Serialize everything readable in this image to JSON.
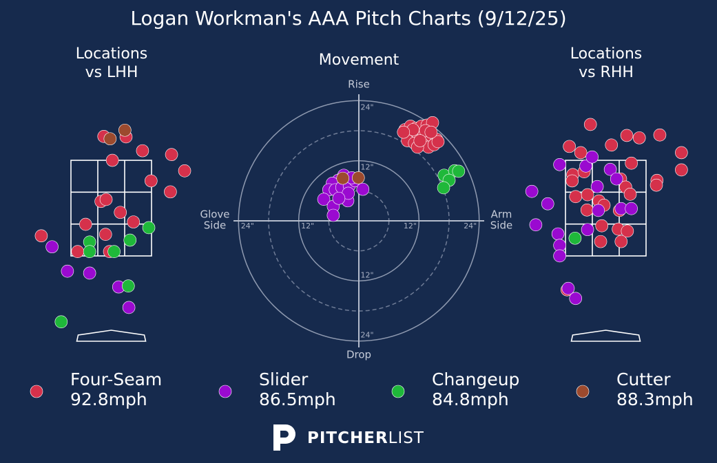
{
  "title": "Logan Workman's AAA Pitch Charts (9/12/25)",
  "pitches": [
    {
      "name": "Four-Seam",
      "speed": "92.8mph",
      "color": "#d5314b"
    },
    {
      "name": "Slider",
      "speed": "86.5mph",
      "color": "#9a0ad0"
    },
    {
      "name": "Changeup",
      "speed": "84.8mph",
      "color": "#1fb83a"
    },
    {
      "name": "Cutter",
      "speed": "88.3mph",
      "color": "#9c4a2e"
    }
  ],
  "chart_data": [
    {
      "type": "scatter",
      "grid": "strike-zone",
      "title": [
        "Locations",
        "vs LHH"
      ],
      "xlim": [
        -1.35,
        1.35
      ],
      "ylim": [
        -0.3,
        4.4
      ],
      "series": [
        {
          "x": [
            -0.13,
            0.26,
            0.55,
            1.06,
            0.02,
            1.29,
            0.7,
            1.04,
            -0.18,
            -0.09,
            0.16,
            0.39,
            -0.45,
            -0.1,
            -1.23,
            -0.59,
            -0.03
          ],
          "y": [
            4.0,
            3.99,
            3.7,
            3.62,
            3.5,
            3.28,
            3.07,
            2.84,
            2.64,
            2.68,
            2.41,
            2.21,
            2.16,
            1.95,
            1.92,
            1.59,
            1.59
          ]
        },
        {
          "x": [
            -1.04,
            -0.77,
            -0.38,
            0.13,
            0.31
          ],
          "y": [
            1.69,
            1.18,
            1.14,
            0.85,
            0.42
          ]
        },
        {
          "x": [
            -0.38,
            -0.38,
            0.05,
            0.33,
            0.66,
            0.3,
            -0.88
          ],
          "y": [
            1.79,
            1.59,
            1.59,
            1.83,
            2.09,
            0.87,
            0.12
          ]
        },
        {
          "x": [
            0.24,
            -0.02
          ],
          "y": [
            4.13,
            3.95
          ]
        }
      ]
    },
    {
      "type": "scatter",
      "grid": "rings",
      "title": [
        "Movement"
      ],
      "xlim": [
        -25,
        25
      ],
      "ylim": [
        -25,
        25
      ],
      "rings": [
        {
          "value": 12,
          "label": "12\""
        },
        {
          "value": 24,
          "label": "24\""
        }
      ],
      "dashed_rings": [
        6,
        18
      ],
      "axis_labels": {
        "top": "Rise",
        "bottom": "Drop",
        "left": [
          "Glove",
          "Side"
        ],
        "right": [
          "Arm",
          "Side"
        ]
      },
      "series": [
        {
          "x": [
            9.2,
            10.3,
            11.4,
            12.5,
            13.6,
            14.7,
            10.6,
            11.9,
            13.0,
            14.1,
            15.5,
            9.7,
            11.1,
            12.8,
            13.9,
            15.0,
            15.8,
            11.7,
            10.8,
            13.3,
            14.4,
            8.9,
            12.2
          ],
          "y": [
            18.2,
            18.9,
            18.5,
            18.9,
            19.1,
            19.6,
            17.1,
            16.9,
            17.1,
            16.6,
            16.3,
            16.0,
            15.5,
            15.2,
            14.7,
            15.2,
            15.8,
            14.7,
            18.2,
            18.0,
            17.7,
            17.7,
            16.0
          ]
        },
        {
          "x": [
            -3.0,
            -4.1,
            -5.3,
            -6.0,
            -4.7,
            -3.4,
            -1.9,
            -0.7,
            0.8,
            -7.0,
            -5.1,
            -5.1,
            -2.2,
            -2.1,
            -4.0,
            -1.4
          ],
          "y": [
            9.1,
            8.1,
            7.5,
            6.2,
            6.2,
            6.7,
            7.0,
            8.0,
            6.3,
            4.3,
            2.9,
            1.1,
            4.0,
            5.5,
            4.5,
            8.6
          ]
        },
        {
          "x": [
            17.0,
            19.1,
            19.9,
            18.0,
            16.9
          ],
          "y": [
            9.1,
            10.0,
            9.9,
            8.1,
            6.6
          ]
        },
        {
          "x": [
            -3.2,
            -0.1
          ],
          "y": [
            8.5,
            8.6
          ]
        }
      ]
    },
    {
      "type": "scatter",
      "grid": "strike-zone",
      "title": [
        "Locations",
        "vs RHH"
      ],
      "xlim": [
        -1.35,
        1.35
      ],
      "ylim": [
        -0.3,
        4.4
      ],
      "series": [
        {
          "x": [
            -0.27,
            -0.64,
            -0.44,
            0.1,
            0.37,
            0.59,
            0.95,
            1.33,
            1.33,
            0.45,
            -0.58,
            -0.38,
            -0.59,
            0.9,
            0.89,
            0.26,
            0.35,
            0.43,
            -0.53,
            -0.32,
            -0.12,
            -0.03,
            -0.33,
            0.24,
            -0.07,
            0.22,
            0.38,
            -0.09,
            0.27,
            -0.68
          ],
          "y": [
            4.25,
            3.79,
            3.66,
            3.82,
            4.02,
            3.97,
            4.03,
            3.66,
            3.3,
            3.44,
            3.2,
            3.26,
            3.07,
            3.08,
            2.98,
            3.11,
            2.94,
            2.79,
            2.74,
            2.78,
            2.65,
            2.56,
            2.46,
            2.45,
            2.13,
            2.06,
            2.02,
            1.8,
            1.8,
            0.79
          ]
        },
        {
          "x": [
            -0.81,
            -0.35,
            -0.24,
            0.08,
            0.19,
            -0.15,
            -0.13,
            0.27,
            0.45,
            -1.3,
            -1.02,
            -1.23,
            -0.32,
            -0.84,
            -0.81,
            -0.81,
            -0.66,
            -0.53
          ],
          "y": [
            3.41,
            3.38,
            3.57,
            3.31,
            3.11,
            2.95,
            2.45,
            2.49,
            2.49,
            2.85,
            2.59,
            2.15,
            2.05,
            1.96,
            1.72,
            1.5,
            0.82,
            0.61
          ]
        },
        {
          "x": [
            -0.54
          ],
          "y": [
            1.87
          ]
        },
        {
          "x": [],
          "y": []
        }
      ]
    }
  ],
  "logo": {
    "bold": "PITCHER",
    "light": "LIST"
  }
}
